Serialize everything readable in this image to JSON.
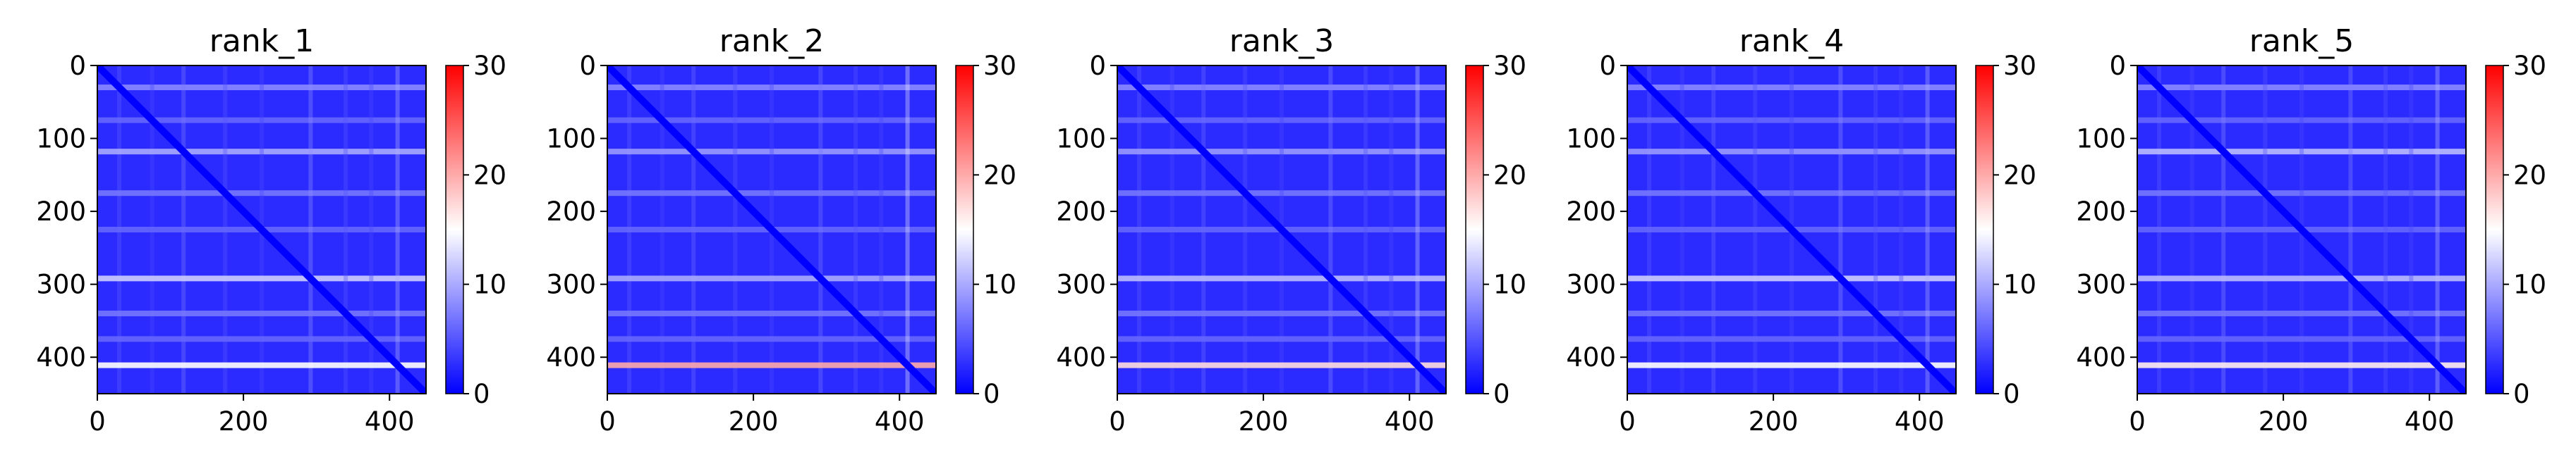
{
  "figure": {
    "colorscale": [
      "#0000ff",
      "#ffffff",
      "#ff0000"
    ]
  },
  "chart_data": [
    {
      "type": "heatmap",
      "title": "rank_1",
      "xlim": [
        0,
        450
      ],
      "ylim": [
        450,
        0
      ],
      "x_ticks": [
        0,
        200,
        400
      ],
      "y_ticks": [
        0,
        100,
        200,
        300,
        400
      ],
      "colorbar": {
        "range": [
          0,
          30
        ],
        "ticks": [
          0,
          10,
          20,
          30
        ]
      },
      "bright_rows": [
        {
          "y": 30,
          "v": 8
        },
        {
          "y": 75,
          "v": 6
        },
        {
          "y": 118,
          "v": 10
        },
        {
          "y": 175,
          "v": 7
        },
        {
          "y": 225,
          "v": 6
        },
        {
          "y": 292,
          "v": 12
        },
        {
          "y": 340,
          "v": 7
        },
        {
          "y": 375,
          "v": 6
        },
        {
          "y": 411,
          "v": 15
        }
      ]
    },
    {
      "type": "heatmap",
      "title": "rank_2",
      "xlim": [
        0,
        450
      ],
      "ylim": [
        450,
        0
      ],
      "x_ticks": [
        0,
        200,
        400
      ],
      "y_ticks": [
        0,
        100,
        200,
        300,
        400
      ],
      "colorbar": {
        "range": [
          0,
          30
        ],
        "ticks": [
          0,
          10,
          20,
          30
        ]
      },
      "bright_rows": [
        {
          "y": 30,
          "v": 8
        },
        {
          "y": 75,
          "v": 6
        },
        {
          "y": 118,
          "v": 9
        },
        {
          "y": 175,
          "v": 7
        },
        {
          "y": 225,
          "v": 6
        },
        {
          "y": 292,
          "v": 10
        },
        {
          "y": 340,
          "v": 7
        },
        {
          "y": 375,
          "v": 6
        },
        {
          "y": 411,
          "v": 20
        }
      ]
    },
    {
      "type": "heatmap",
      "title": "rank_3",
      "xlim": [
        0,
        450
      ],
      "ylim": [
        450,
        0
      ],
      "x_ticks": [
        0,
        200,
        400
      ],
      "y_ticks": [
        0,
        100,
        200,
        300,
        400
      ],
      "colorbar": {
        "range": [
          0,
          30
        ],
        "ticks": [
          0,
          10,
          20,
          30
        ]
      },
      "bright_rows": [
        {
          "y": 30,
          "v": 8
        },
        {
          "y": 75,
          "v": 6
        },
        {
          "y": 118,
          "v": 9
        },
        {
          "y": 175,
          "v": 7
        },
        {
          "y": 225,
          "v": 6
        },
        {
          "y": 292,
          "v": 11
        },
        {
          "y": 340,
          "v": 7
        },
        {
          "y": 375,
          "v": 6
        },
        {
          "y": 411,
          "v": 17
        }
      ]
    },
    {
      "type": "heatmap",
      "title": "rank_4",
      "xlim": [
        0,
        450
      ],
      "ylim": [
        450,
        0
      ],
      "x_ticks": [
        0,
        200,
        400
      ],
      "y_ticks": [
        0,
        100,
        200,
        300,
        400
      ],
      "colorbar": {
        "range": [
          0,
          30
        ],
        "ticks": [
          0,
          10,
          20,
          30
        ]
      },
      "bright_rows": [
        {
          "y": 30,
          "v": 8
        },
        {
          "y": 75,
          "v": 6
        },
        {
          "y": 118,
          "v": 9
        },
        {
          "y": 175,
          "v": 7
        },
        {
          "y": 225,
          "v": 6
        },
        {
          "y": 292,
          "v": 12
        },
        {
          "y": 340,
          "v": 7
        },
        {
          "y": 375,
          "v": 6
        },
        {
          "y": 411,
          "v": 15
        }
      ]
    },
    {
      "type": "heatmap",
      "title": "rank_5",
      "xlim": [
        0,
        450
      ],
      "ylim": [
        450,
        0
      ],
      "x_ticks": [
        0,
        200,
        400
      ],
      "y_ticks": [
        0,
        100,
        200,
        300,
        400
      ],
      "colorbar": {
        "range": [
          0,
          30
        ],
        "ticks": [
          0,
          10,
          20,
          30
        ]
      },
      "bright_rows": [
        {
          "y": 30,
          "v": 8
        },
        {
          "y": 75,
          "v": 6
        },
        {
          "y": 118,
          "v": 11
        },
        {
          "y": 175,
          "v": 7
        },
        {
          "y": 225,
          "v": 6
        },
        {
          "y": 292,
          "v": 11
        },
        {
          "y": 340,
          "v": 7
        },
        {
          "y": 375,
          "v": 6
        },
        {
          "y": 411,
          "v": 16
        }
      ]
    }
  ]
}
